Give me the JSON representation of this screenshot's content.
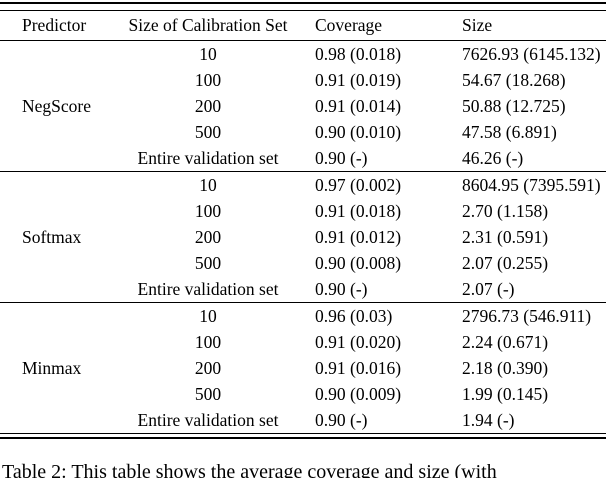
{
  "table": {
    "headers": [
      "Predictor",
      "Size of Calibration Set",
      "Coverage",
      "Size"
    ],
    "groups": [
      {
        "predictor": "NegScore",
        "rows": [
          {
            "calibration_set_size": "10",
            "coverage": "0.98 (0.018)",
            "size": "7626.93 (6145.132)"
          },
          {
            "calibration_set_size": "100",
            "coverage": "0.91 (0.019)",
            "size": "54.67 (18.268)"
          },
          {
            "calibration_set_size": "200",
            "coverage": "0.91 (0.014)",
            "size": "50.88 (12.725)"
          },
          {
            "calibration_set_size": "500",
            "coverage": "0.90 (0.010)",
            "size": "47.58 (6.891)"
          },
          {
            "calibration_set_size": "Entire validation set",
            "coverage": "0.90 (-)",
            "size": "46.26 (-)"
          }
        ]
      },
      {
        "predictor": "Softmax",
        "rows": [
          {
            "calibration_set_size": "10",
            "coverage": "0.97 (0.002)",
            "size": "8604.95 (7395.591)"
          },
          {
            "calibration_set_size": "100",
            "coverage": "0.91 (0.018)",
            "size": "2.70 (1.158)"
          },
          {
            "calibration_set_size": "200",
            "coverage": "0.91 (0.012)",
            "size": "2.31 (0.591)"
          },
          {
            "calibration_set_size": "500",
            "coverage": "0.90 (0.008)",
            "size": "2.07 (0.255)"
          },
          {
            "calibration_set_size": "Entire validation set",
            "coverage": "0.90 (-)",
            "size": "2.07 (-)"
          }
        ]
      },
      {
        "predictor": "Minmax",
        "rows": [
          {
            "calibration_set_size": "10",
            "coverage": "0.96 (0.03)",
            "size": "2796.73 (546.911)"
          },
          {
            "calibration_set_size": "100",
            "coverage": "0.91 (0.020)",
            "size": "2.24 (0.671)"
          },
          {
            "calibration_set_size": "200",
            "coverage": "0.91 (0.016)",
            "size": "2.18 (0.390)"
          },
          {
            "calibration_set_size": "500",
            "coverage": "0.90 (0.009)",
            "size": "1.99 (0.145)"
          },
          {
            "calibration_set_size": "Entire validation set",
            "coverage": "0.90 (-)",
            "size": "1.94 (-)"
          }
        ]
      }
    ]
  },
  "caption": "Table 2: This table shows the average coverage and size (with",
  "colors": {
    "text": "#000000",
    "rule": "#000000",
    "background": "#ffffff"
  }
}
